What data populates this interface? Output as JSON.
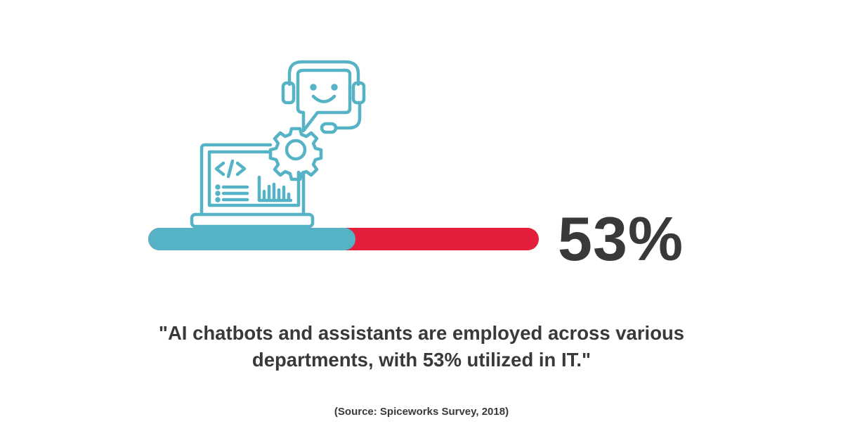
{
  "icon": "laptop-chatbot-gear-icon",
  "colors": {
    "accent": "#56b3c6",
    "remainder": "#e41f3b",
    "text": "#3b3838"
  },
  "progress": {
    "percent": 53,
    "label": "53%"
  },
  "quote": {
    "line1": "\"AI chatbots and assistants are employed across various",
    "line2": "departments, with 53% utilized in IT.\""
  },
  "source": "(Source: Spiceworks Survey, 2018)"
}
